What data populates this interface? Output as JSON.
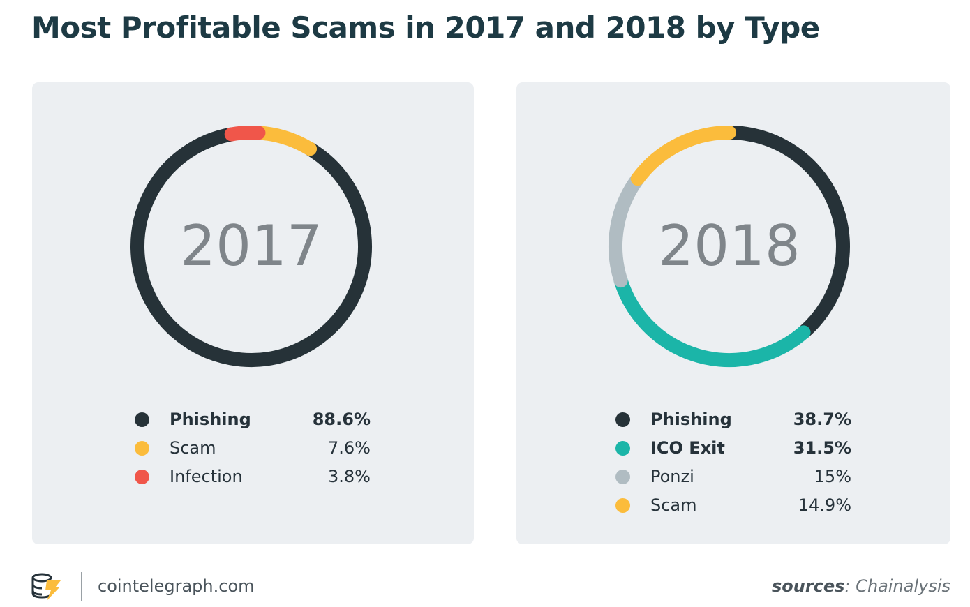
{
  "title": "Most Profitable Scams in 2017 and 2018 by Type",
  "chart_data": [
    {
      "type": "pie",
      "center_label": "2017",
      "start_angle_deg": 350,
      "clockwise": true,
      "segment_order": [
        "Infection",
        "Scam",
        "Phishing"
      ],
      "series": [
        {
          "name": "Phishing",
          "value": 88.6,
          "display": "88.6%",
          "color": "#263238",
          "bold": true
        },
        {
          "name": "Scam",
          "value": 7.6,
          "display": "7.6%",
          "color": "#fbbc3c",
          "bold": false
        },
        {
          "name": "Infection",
          "value": 3.8,
          "display": "3.8%",
          "color": "#f0564a",
          "bold": false
        }
      ]
    },
    {
      "type": "pie",
      "center_label": "2018",
      "start_angle_deg": 0,
      "clockwise": true,
      "segment_order": [
        "Phishing",
        "ICO Exit",
        "Ponzi",
        "Scam"
      ],
      "series": [
        {
          "name": "Phishing",
          "value": 38.7,
          "display": "38.7%",
          "color": "#263238",
          "bold": true
        },
        {
          "name": "ICO Exit",
          "value": 31.5,
          "display": "31.5%",
          "color": "#1bb5a8",
          "bold": true
        },
        {
          "name": "Ponzi",
          "value": 15,
          "display": "15%",
          "color": "#b0bcc2",
          "bold": false
        },
        {
          "name": "Scam",
          "value": 14.9,
          "display": "14.9%",
          "color": "#fbbc3c",
          "bold": false
        }
      ]
    }
  ],
  "footer": {
    "site": "cointelegraph.com",
    "sources_key": "sources",
    "sources_value": ": Chainalysis",
    "logo_icon": "cointelegraph-logo-icon"
  }
}
